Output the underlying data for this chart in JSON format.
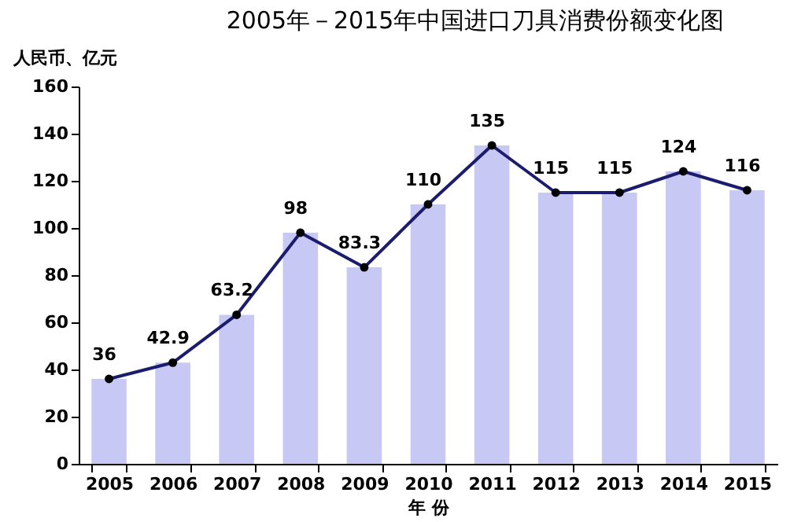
{
  "chart_data": {
    "type": "bar",
    "title": "2005年－2015年中国进口刀具消费份额变化图",
    "xlabel": "年 份",
    "ylabel": "人民币、亿元",
    "categories": [
      "2005",
      "2006",
      "2007",
      "2008",
      "2009",
      "2010",
      "2011",
      "2012",
      "2013",
      "2014",
      "2015"
    ],
    "series": [
      {
        "color": "#c8c8f4",
        "values": [
          36,
          42.9,
          63.2,
          98,
          83.3,
          110,
          135,
          115,
          115,
          124,
          116
        ]
      },
      {
        "type": "line",
        "color": "#1c1c6e",
        "values": [
          36,
          42.9,
          63.2,
          98,
          83.3,
          110,
          135,
          115,
          115,
          124,
          116
        ],
        "value_labels": [
          "36",
          "42.9",
          "63.2",
          "98",
          "83.3",
          "110",
          "135",
          "115",
          "115",
          "124",
          "116"
        ]
      }
    ],
    "ylim": [
      0,
      160
    ],
    "yticks": [
      0,
      20,
      40,
      60,
      80,
      100,
      120,
      140,
      160
    ],
    "grid": false,
    "marker": "circle",
    "line_style": "solid"
  }
}
